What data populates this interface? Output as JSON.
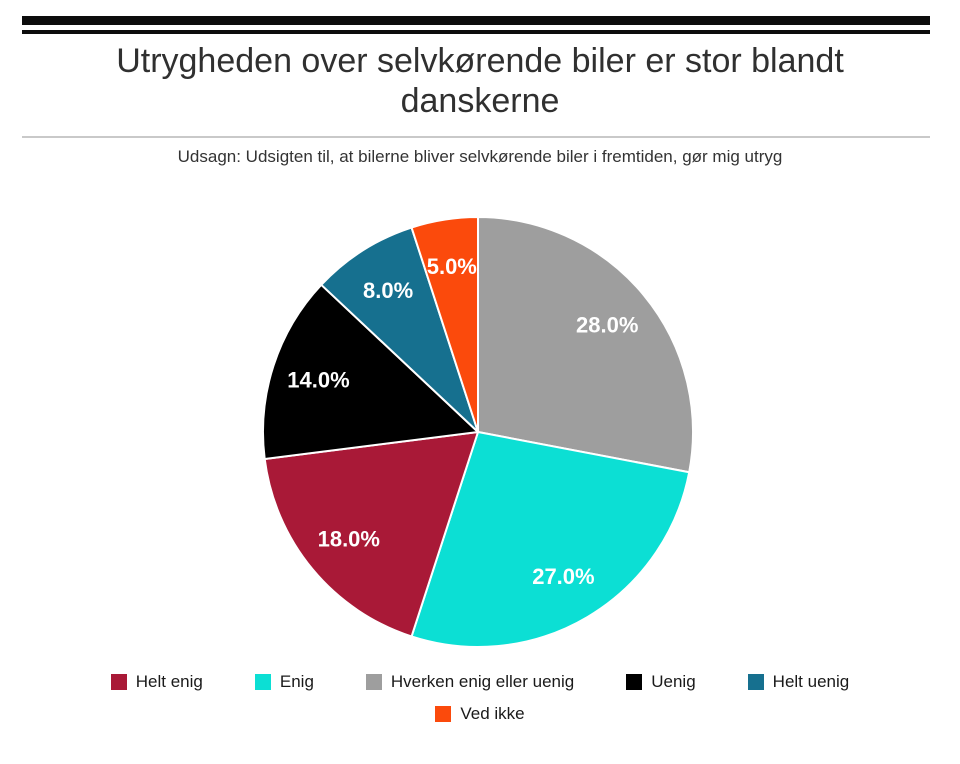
{
  "chart_data": {
    "type": "pie",
    "title": "Utrygheden over selvkørende biler er stor blandt danskerne",
    "statement": "Udsagn: Udsigten til, at bilerne bliver selvkørende biler i fremtiden, gør mig utryg",
    "categories": [
      "Helt enig",
      "Enig",
      "Hverken enig eller uenig",
      "Uenig",
      "Helt uenig",
      "Ved ikke"
    ],
    "values": [
      18.0,
      27.0,
      28.0,
      14.0,
      8.0,
      5.0
    ],
    "labels": [
      "18.0%",
      "27.0%",
      "28.0%",
      "14.0%",
      "8.0%",
      "5.0%"
    ],
    "colors": [
      "#A91937",
      "#0CDFD4",
      "#9E9E9E",
      "#000000",
      "#16708F",
      "#FB4A0C"
    ],
    "draw_order_clockwise_from_top": [
      "Hverken enig eller uenig",
      "Enig",
      "Helt enig",
      "Uenig",
      "Helt uenig",
      "Ved ikke"
    ],
    "start_angle_deg": 0,
    "direction": "clockwise",
    "slice_label_color": "#ffffff",
    "slice_border_color": "#ffffff",
    "legend_position": "bottom",
    "legend_rows": [
      [
        "Helt enig",
        "Enig",
        "Hverken enig eller uenig",
        "Uenig",
        "Helt uenig"
      ],
      [
        "Ved ikke"
      ]
    ]
  }
}
